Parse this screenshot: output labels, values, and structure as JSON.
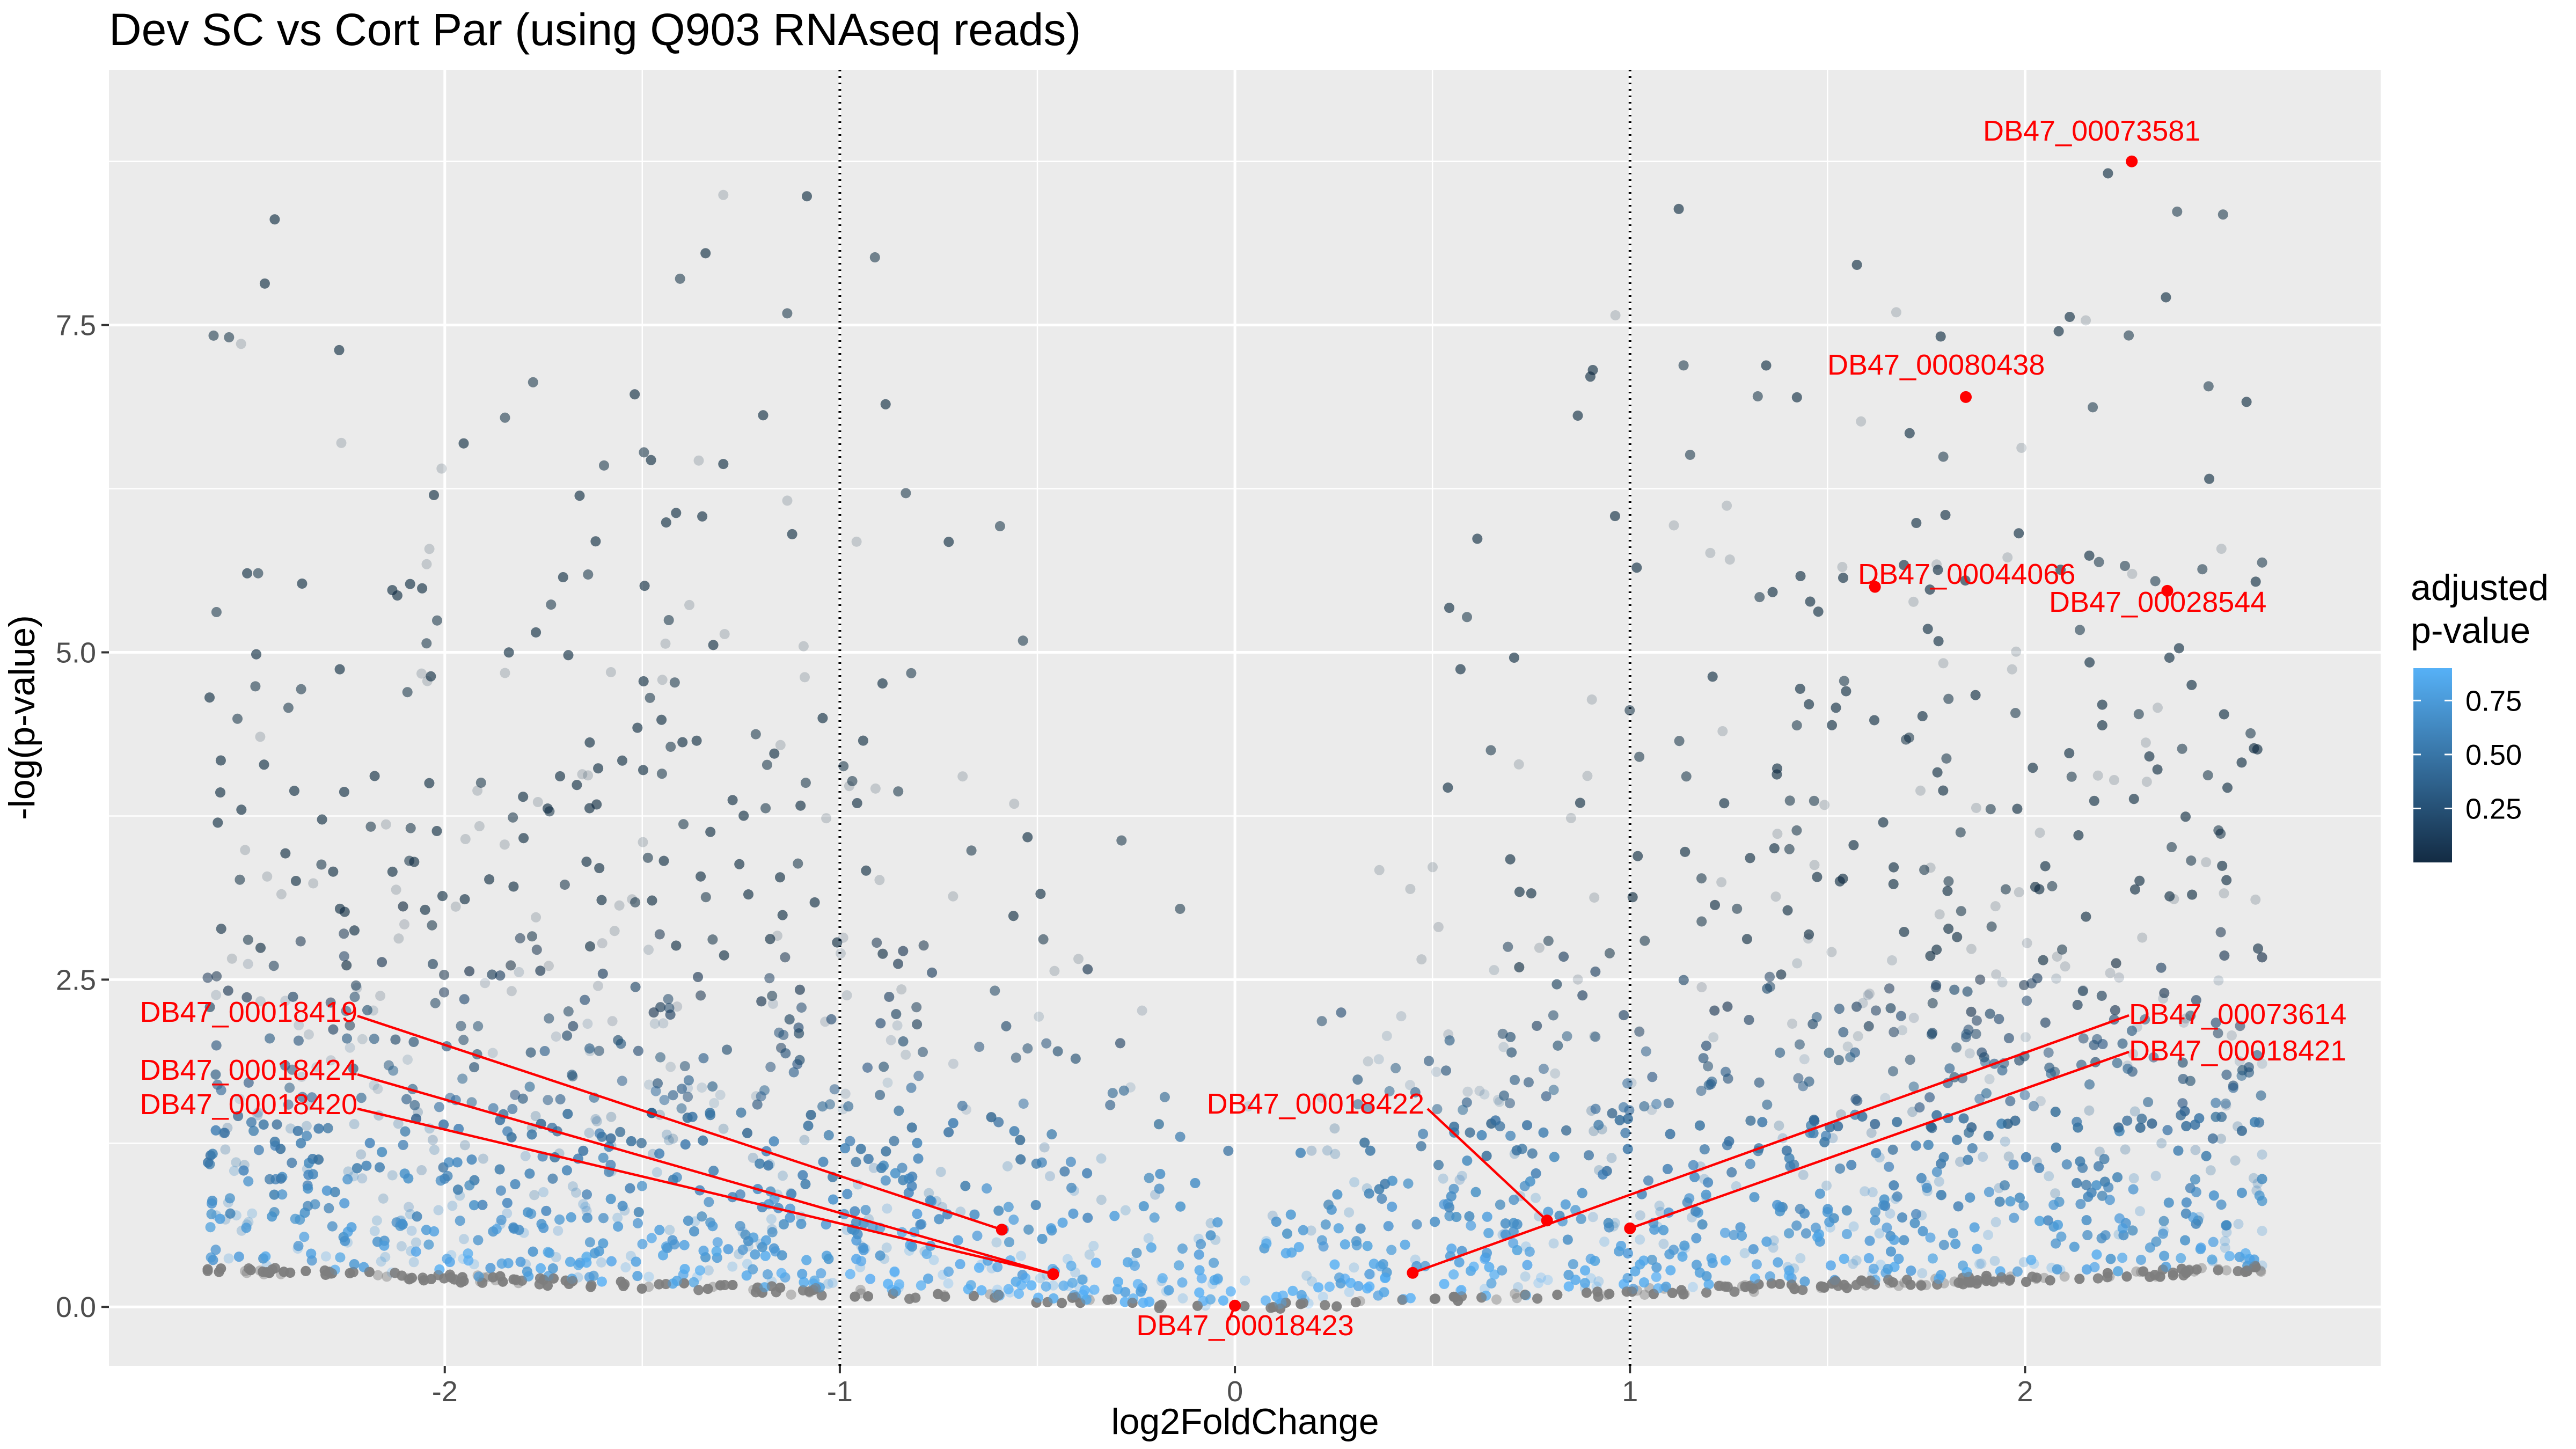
{
  "chart_data": {
    "type": "scatter",
    "title": "Dev SC vs Cort Par (using Q903 RNAseq reads)",
    "xlabel": "log2FoldChange",
    "ylabel": "-log(p-value)",
    "xlim": [
      -2.85,
      2.9
    ],
    "ylim": [
      -0.45,
      9.45
    ],
    "x_ticks": [
      {
        "value": -2,
        "label": "-2"
      },
      {
        "value": -1,
        "label": "-1"
      },
      {
        "value": 0,
        "label": "0"
      },
      {
        "value": 1,
        "label": "1"
      },
      {
        "value": 2,
        "label": "2"
      }
    ],
    "y_ticks": [
      {
        "value": 0,
        "label": "0.0"
      },
      {
        "value": 2.5,
        "label": "2.5"
      },
      {
        "value": 5,
        "label": "5.0"
      },
      {
        "value": 7.5,
        "label": "7.5"
      }
    ],
    "vlines": [
      -1,
      1
    ],
    "grid": true,
    "color_scale": {
      "title": [
        "adjusted",
        "p-value"
      ],
      "low_color": "#132B43",
      "high_color": "#56B1F7",
      "domain": [
        0,
        0.9
      ],
      "ticks": [
        {
          "value": 0.25,
          "label": "0.25"
        },
        {
          "value": 0.5,
          "label": "0.50"
        },
        {
          "value": 0.75,
          "label": "0.75"
        }
      ],
      "legend_position": "right"
    },
    "na_color": "#7f7f7f",
    "highlight_color": "#ff0000",
    "background_points": {
      "count": 9000,
      "x_range": [
        -2.62,
        2.6
      ],
      "y_max": 9.0,
      "description_key": "scattered"
    },
    "highlighted_genes": [
      {
        "label": "DB47_00073581",
        "x": 2.27,
        "y": 8.75
      },
      {
        "label": "DB47_00080438",
        "x": 1.85,
        "y": 6.95
      },
      {
        "label": "DB47_00044066",
        "x": 1.62,
        "y": 5.5
      },
      {
        "label": "DB47_00028544",
        "x": 2.36,
        "y": 5.47
      },
      {
        "label": "DB47_00073614",
        "x": 0.45,
        "y": 0.26
      },
      {
        "label": "DB47_00018421",
        "x": 1.0,
        "y": 0.6
      },
      {
        "label": "DB47_00018422",
        "x": 0.79,
        "y": 0.66
      },
      {
        "label": "DB47_00018423",
        "x": 0.0,
        "y": 0.01
      },
      {
        "label": "DB47_00018419",
        "x": -0.59,
        "y": 0.59
      },
      {
        "label": "DB47_00018424",
        "x": -0.46,
        "y": 0.25
      },
      {
        "label": "DB47_00018420",
        "x": -0.46,
        "y": 0.25
      }
    ]
  }
}
